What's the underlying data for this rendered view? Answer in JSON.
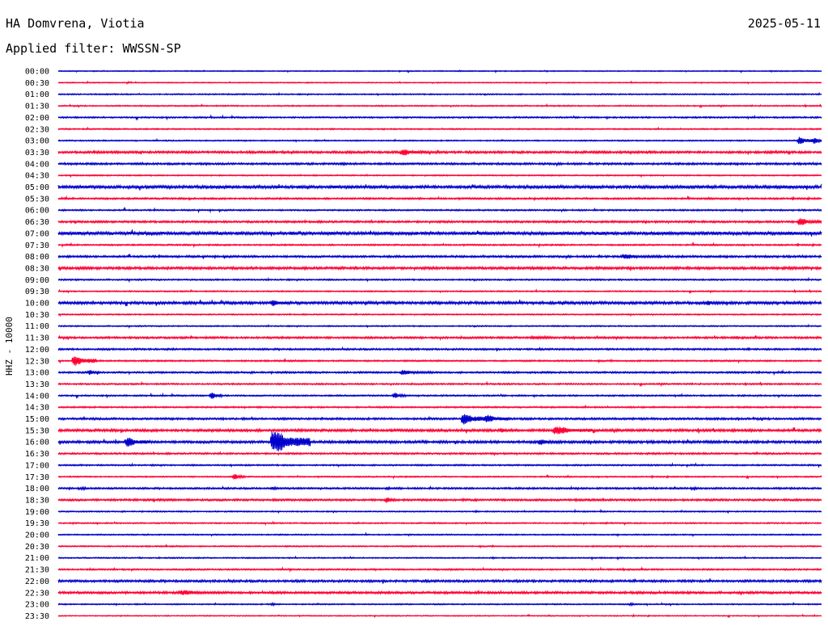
{
  "header": {
    "station": "HA Domvrena, Viotia",
    "date": "2025-05-11",
    "filter": "Applied filter: WWSSN-SP"
  },
  "chart_data": {
    "type": "line",
    "title": "HA Domvrena, Viotia",
    "ylabel": "HHZ - 10000",
    "rows": [
      "00:00",
      "00:30",
      "01:00",
      "01:30",
      "02:00",
      "02:30",
      "03:00",
      "03:30",
      "04:00",
      "04:30",
      "05:00",
      "05:30",
      "06:00",
      "06:30",
      "07:00",
      "07:30",
      "08:00",
      "08:30",
      "09:00",
      "09:30",
      "10:00",
      "10:30",
      "11:00",
      "11:30",
      "12:00",
      "12:30",
      "13:00",
      "13:30",
      "14:00",
      "14:30",
      "15:00",
      "15:30",
      "16:00",
      "16:30",
      "17:00",
      "17:30",
      "18:00",
      "18:30",
      "19:00",
      "19:30",
      "20:00",
      "20:30",
      "21:00",
      "21:30",
      "22:00",
      "22:30",
      "23:00",
      "23:30"
    ],
    "colors": [
      "#0000cc",
      "#ff0033"
    ],
    "noise": [
      0.4,
      0.4,
      0.5,
      0.5,
      0.6,
      0.5,
      0.5,
      0.9,
      0.8,
      0.5,
      1.2,
      0.7,
      0.6,
      0.8,
      1.3,
      0.6,
      0.8,
      1.0,
      0.6,
      0.5,
      1.1,
      0.5,
      0.5,
      0.8,
      0.7,
      0.6,
      0.7,
      0.6,
      0.6,
      0.6,
      0.8,
      1.0,
      1.0,
      0.7,
      0.6,
      0.5,
      0.7,
      0.8,
      0.5,
      0.5,
      0.5,
      0.5,
      0.5,
      0.6,
      0.9,
      0.9,
      0.5,
      0.4
    ],
    "events": [
      {
        "row": "03:00",
        "t": 0.97,
        "amp": 8,
        "dur": 0.02
      },
      {
        "row": "03:00",
        "t": 0.99,
        "amp": 7,
        "dur": 0.015
      },
      {
        "row": "03:30",
        "t": 0.45,
        "amp": 7,
        "dur": 0.03
      },
      {
        "row": "04:00",
        "t": 0.37,
        "amp": 3,
        "dur": 0.02
      },
      {
        "row": "05:00",
        "t": 0.36,
        "amp": 3,
        "dur": 0.03
      },
      {
        "row": "06:30",
        "t": 0.97,
        "amp": 7,
        "dur": 0.03
      },
      {
        "row": "08:00",
        "t": 0.74,
        "amp": 5,
        "dur": 0.05
      },
      {
        "row": "10:00",
        "t": 0.28,
        "amp": 7,
        "dur": 0.02
      },
      {
        "row": "10:00",
        "t": 0.85,
        "amp": 5,
        "dur": 0.02
      },
      {
        "row": "11:30",
        "t": 0.62,
        "amp": 3,
        "dur": 0.08
      },
      {
        "row": "12:30",
        "t": 0.02,
        "amp": 10,
        "dur": 0.03
      },
      {
        "row": "13:00",
        "t": 0.04,
        "amp": 5,
        "dur": 0.015
      },
      {
        "row": "13:00",
        "t": 0.45,
        "amp": 5,
        "dur": 0.04
      },
      {
        "row": "14:00",
        "t": 0.2,
        "amp": 7,
        "dur": 0.015
      },
      {
        "row": "14:00",
        "t": 0.44,
        "amp": 6,
        "dur": 0.015
      },
      {
        "row": "15:00",
        "t": 0.53,
        "amp": 12,
        "dur": 0.03
      },
      {
        "row": "15:00",
        "t": 0.56,
        "amp": 8,
        "dur": 0.03
      },
      {
        "row": "15:30",
        "t": 0.58,
        "amp": 5,
        "dur": 0.015
      },
      {
        "row": "15:30",
        "t": 0.65,
        "amp": 8,
        "dur": 0.05
      },
      {
        "row": "16:00",
        "t": 0.09,
        "amp": 9,
        "dur": 0.03
      },
      {
        "row": "16:00",
        "t": 0.28,
        "amp": 22,
        "dur": 0.05
      },
      {
        "row": "16:00",
        "t": 0.38,
        "amp": 4,
        "dur": 0.03
      },
      {
        "row": "16:00",
        "t": 0.63,
        "amp": 6,
        "dur": 0.03
      },
      {
        "row": "17:30",
        "t": 0.23,
        "amp": 6,
        "dur": 0.015
      },
      {
        "row": "18:00",
        "t": 0.03,
        "amp": 3,
        "dur": 0.02
      },
      {
        "row": "18:00",
        "t": 0.28,
        "amp": 3,
        "dur": 0.02
      },
      {
        "row": "18:00",
        "t": 0.43,
        "amp": 3,
        "dur": 0.015
      },
      {
        "row": "18:00",
        "t": 0.83,
        "amp": 3,
        "dur": 0.02
      },
      {
        "row": "18:30",
        "t": 0.43,
        "amp": 7,
        "dur": 0.01
      },
      {
        "row": "22:30",
        "t": 0.16,
        "amp": 5,
        "dur": 0.06
      },
      {
        "row": "23:00",
        "t": 0.28,
        "amp": 3,
        "dur": 0.01
      },
      {
        "row": "23:00",
        "t": 0.75,
        "amp": 3,
        "dur": 0.01
      }
    ]
  }
}
